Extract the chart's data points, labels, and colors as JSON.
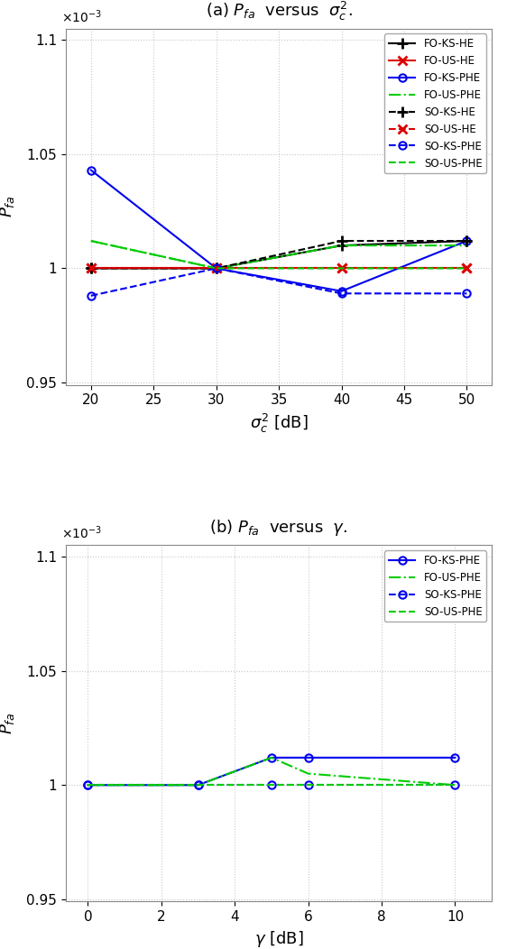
{
  "title_a": "(a) $P_{fa}$  versus  $\\sigma_c^2$.",
  "title_b": "(b) $P_{fa}$  versus  $\\gamma$.",
  "xlabel_a": "$\\sigma_c^2$ [dB]",
  "xlabel_b": "$\\gamma$ [dB]",
  "ylabel": "$P_{fa}$",
  "plot_a": {
    "x": [
      20,
      30,
      40,
      50
    ],
    "series": [
      {
        "label": "FO-KS-HE",
        "color": "#000000",
        "ls": "-",
        "marker": "+",
        "ms": 8,
        "lw": 1.5,
        "mew": 2.0,
        "y": [
          1.0,
          1.0,
          1.01,
          1.012
        ]
      },
      {
        "label": "FO-US-HE",
        "color": "#dd0000",
        "ls": "-",
        "marker": "x",
        "ms": 7,
        "lw": 1.5,
        "mew": 2.0,
        "y": [
          1.0,
          1.0,
          1.0,
          1.0
        ]
      },
      {
        "label": "FO-KS-PHE",
        "color": "#0000ee",
        "ls": "-",
        "marker": "o",
        "ms": 6,
        "lw": 1.5,
        "mew": 1.5,
        "y": [
          1.043,
          1.0,
          0.99,
          1.012
        ]
      },
      {
        "label": "FO-US-PHE",
        "color": "#00cc00",
        "ls": "-.",
        "marker": "",
        "ms": 0,
        "lw": 1.5,
        "mew": 1.0,
        "y": [
          1.012,
          1.0,
          1.01,
          1.01
        ]
      },
      {
        "label": "SO-KS-HE",
        "color": "#000000",
        "ls": "--",
        "marker": "+",
        "ms": 8,
        "lw": 1.5,
        "mew": 2.0,
        "y": [
          1.0,
          1.0,
          1.012,
          1.012
        ]
      },
      {
        "label": "SO-US-HE",
        "color": "#dd0000",
        "ls": "--",
        "marker": "x",
        "ms": 7,
        "lw": 1.5,
        "mew": 2.0,
        "y": [
          1.0,
          1.0,
          1.0,
          1.0
        ]
      },
      {
        "label": "SO-KS-PHE",
        "color": "#0000ee",
        "ls": "--",
        "marker": "o",
        "ms": 6,
        "lw": 1.5,
        "mew": 1.5,
        "y": [
          0.988,
          1.0,
          0.989,
          0.989
        ]
      },
      {
        "label": "SO-US-PHE",
        "color": "#00cc00",
        "ls": "--",
        "marker": "",
        "ms": 0,
        "lw": 1.5,
        "mew": 1.0,
        "y": [
          1.012,
          1.0,
          1.0,
          1.0
        ]
      }
    ],
    "xlim": [
      18,
      52
    ],
    "xticks": [
      20,
      25,
      30,
      35,
      40,
      45,
      50
    ],
    "ylim": [
      0.000949,
      0.001105
    ],
    "yticks": [
      0.00095,
      0.001,
      0.00105,
      0.0011
    ],
    "ytick_labels": [
      "0.95",
      "1",
      "1.05",
      "1.1"
    ]
  },
  "plot_b": {
    "x": [
      0,
      3,
      5,
      6,
      10
    ],
    "series": [
      {
        "label": "FO-KS-PHE",
        "color": "#0000ee",
        "ls": "-",
        "marker": "o",
        "ms": 6,
        "lw": 1.5,
        "mew": 1.5,
        "y": [
          1.0,
          1.0,
          1.012,
          1.012,
          1.012
        ]
      },
      {
        "label": "FO-US-PHE",
        "color": "#00cc00",
        "ls": "-.",
        "marker": "",
        "ms": 0,
        "lw": 1.5,
        "mew": 1.0,
        "y": [
          1.0,
          1.0,
          1.012,
          1.005,
          1.0
        ]
      },
      {
        "label": "SO-KS-PHE",
        "color": "#0000ee",
        "ls": "--",
        "marker": "o",
        "ms": 6,
        "lw": 1.5,
        "mew": 1.5,
        "y": [
          1.0,
          1.0,
          1.0,
          1.0,
          1.0
        ]
      },
      {
        "label": "SO-US-PHE",
        "color": "#00cc00",
        "ls": "--",
        "marker": "",
        "ms": 0,
        "lw": 1.5,
        "mew": 1.0,
        "y": [
          1.0,
          1.0,
          1.0,
          1.0,
          1.0
        ]
      }
    ],
    "xlim": [
      -0.6,
      11.0
    ],
    "xticks": [
      0,
      2,
      4,
      6,
      8,
      10
    ],
    "ylim": [
      0.000949,
      0.001105
    ],
    "yticks": [
      0.00095,
      0.001,
      0.00105,
      0.0011
    ],
    "ytick_labels": [
      "0.95",
      "1",
      "1.05",
      "1.1"
    ]
  },
  "grid_color": "#c8c8c8",
  "legend_fontsize": 8.5,
  "tick_fontsize": 11,
  "label_fontsize": 13,
  "title_fontsize": 13
}
